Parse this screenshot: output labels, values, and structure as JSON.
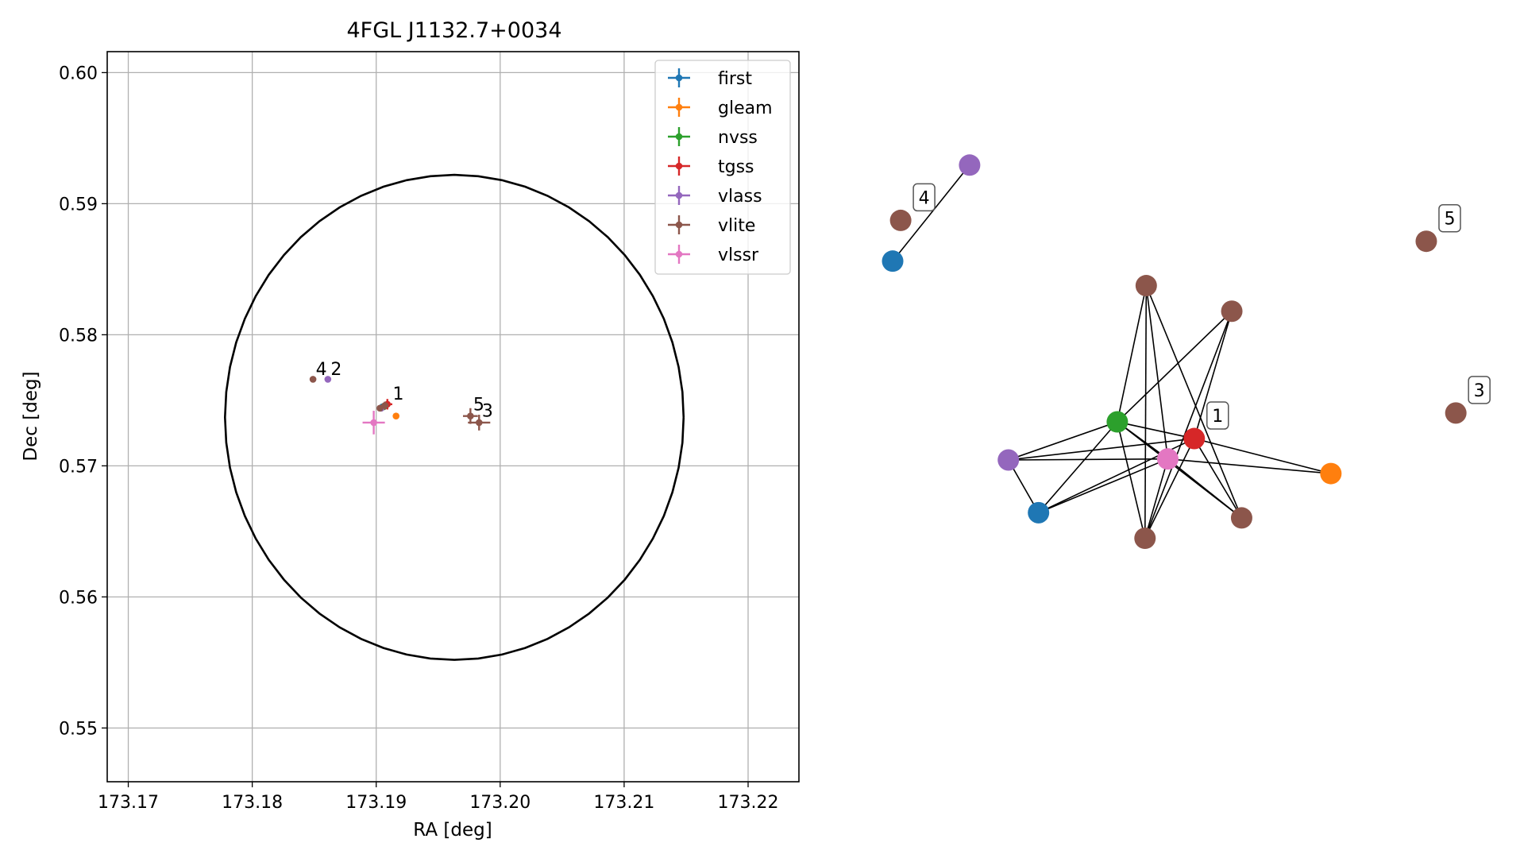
{
  "chart_data": [
    {
      "type": "scatter",
      "title": "4FGL J1132.7+0034",
      "xlabel": "RA [deg]",
      "ylabel": "Dec [deg]",
      "xlim": [
        173.1683,
        173.2241
      ],
      "ylim": [
        0.5459,
        0.6016
      ],
      "xticks": [
        "173.17",
        "173.18",
        "173.19",
        "173.20",
        "173.21",
        "173.22"
      ],
      "xtick_values": [
        173.17,
        173.18,
        173.19,
        173.2,
        173.21,
        173.22
      ],
      "yticks": [
        "0.55",
        "0.56",
        "0.57",
        "0.58",
        "0.59",
        "0.60"
      ],
      "ytick_values": [
        0.55,
        0.56,
        0.57,
        0.58,
        0.59,
        0.6
      ],
      "grid": true,
      "legend_placement": "top-right",
      "circle": {
        "center": [
          173.1963,
          0.5737
        ],
        "radius_deg": 0.0185,
        "color": "#000000"
      },
      "series": [
        {
          "name": "first",
          "color": "#1f77b4",
          "points": [
            {
              "x": 173.1905,
              "y": 0.5745,
              "xerr": 0.0002,
              "yerr": 0.0002
            }
          ]
        },
        {
          "name": "gleam",
          "color": "#ff7f0e",
          "points": [
            {
              "x": 173.1916,
              "y": 0.5738,
              "xerr": 0.0001,
              "yerr": 0.0001
            }
          ]
        },
        {
          "name": "nvss",
          "color": "#2ca02c",
          "points": [
            {
              "x": 173.1906,
              "y": 0.5745,
              "xerr": 0.0002,
              "yerr": 0.0002
            }
          ]
        },
        {
          "name": "tgss",
          "color": "#d62728",
          "points": [
            {
              "x": 173.1909,
              "y": 0.5747,
              "xerr": 0.0004,
              "yerr": 0.0004
            }
          ]
        },
        {
          "name": "vlass",
          "color": "#9467bd",
          "points": [
            {
              "x": 173.1861,
              "y": 0.5766,
              "xerr": 0.0001,
              "yerr": 0.0001
            },
            {
              "x": 173.1904,
              "y": 0.5744,
              "xerr": 0.0001,
              "yerr": 0.0001
            }
          ]
        },
        {
          "name": "vlite",
          "color": "#8c564b",
          "points": [
            {
              "x": 173.1907,
              "y": 0.5746,
              "xerr": 0.0003,
              "yerr": 0.0003
            },
            {
              "x": 173.1849,
              "y": 0.5766,
              "xerr": 0.0001,
              "yerr": 0.0001
            },
            {
              "x": 173.1976,
              "y": 0.5738,
              "xerr": 0.0006,
              "yerr": 0.0006
            },
            {
              "x": 173.1983,
              "y": 0.5733,
              "xerr": 0.0009,
              "yerr": 0.0006
            },
            {
              "x": 173.1903,
              "y": 0.5744,
              "xerr": 0.0002,
              "yerr": 0.0002
            }
          ]
        },
        {
          "name": "vlssr",
          "color": "#e377c2",
          "points": [
            {
              "x": 173.1898,
              "y": 0.5733,
              "xerr": 0.0009,
              "yerr": 0.0009
            }
          ]
        }
      ],
      "annotations": [
        {
          "text": "1",
          "x": 173.1912,
          "y": 0.5748
        },
        {
          "text": "2",
          "x": 173.1862,
          "y": 0.5767
        },
        {
          "text": "3",
          "x": 173.1984,
          "y": 0.5735
        },
        {
          "text": "4",
          "x": 173.185,
          "y": 0.5767
        },
        {
          "text": "5",
          "x": 173.1977,
          "y": 0.574
        }
      ]
    },
    {
      "type": "network",
      "nodes": [
        {
          "id": "first_a",
          "color": "#1f77b4",
          "x": 0.031,
          "y": 0.725
        },
        {
          "id": "vlass_a",
          "color": "#9467bd",
          "x": 0.156,
          "y": 0.909
        },
        {
          "id": "vlite_4",
          "color": "#8c564b",
          "x": 0.044,
          "y": 0.803,
          "label": "4"
        },
        {
          "id": "vlite_5",
          "color": "#8c564b",
          "x": 0.898,
          "y": 0.763,
          "label": "5"
        },
        {
          "id": "vlite_3",
          "color": "#8c564b",
          "x": 0.946,
          "y": 0.434,
          "label": "3"
        },
        {
          "id": "vlite_b",
          "color": "#8c564b",
          "x": 0.443,
          "y": 0.678
        },
        {
          "id": "vlite_c",
          "color": "#8c564b",
          "x": 0.582,
          "y": 0.629
        },
        {
          "id": "nvss",
          "color": "#2ca02c",
          "x": 0.396,
          "y": 0.417
        },
        {
          "id": "tgss",
          "color": "#d62728",
          "x": 0.521,
          "y": 0.385,
          "label": "1"
        },
        {
          "id": "vlass_b",
          "color": "#9467bd",
          "x": 0.219,
          "y": 0.344
        },
        {
          "id": "vlssr",
          "color": "#e377c2",
          "x": 0.478,
          "y": 0.346
        },
        {
          "id": "gleam",
          "color": "#ff7f0e",
          "x": 0.743,
          "y": 0.318
        },
        {
          "id": "first_b",
          "color": "#1f77b4",
          "x": 0.268,
          "y": 0.243
        },
        {
          "id": "vlite_d",
          "color": "#8c564b",
          "x": 0.598,
          "y": 0.233
        },
        {
          "id": "vlite_e",
          "color": "#8c564b",
          "x": 0.441,
          "y": 0.194
        }
      ],
      "edges": [
        [
          "first_a",
          "vlass_a"
        ],
        [
          "vlite_b",
          "vlite_e"
        ],
        [
          "vlite_b",
          "vlssr"
        ],
        [
          "vlite_b",
          "vlite_d"
        ],
        [
          "vlite_b",
          "nvss"
        ],
        [
          "vlite_c",
          "nvss"
        ],
        [
          "vlite_c",
          "vlite_e"
        ],
        [
          "vlite_c",
          "tgss"
        ],
        [
          "nvss",
          "vlass_b"
        ],
        [
          "nvss",
          "first_b"
        ],
        [
          "nvss",
          "tgss"
        ],
        [
          "nvss",
          "vlite_d"
        ],
        [
          "nvss",
          "vlite_e"
        ],
        [
          "nvss",
          "vlssr"
        ],
        [
          "vlass_b",
          "vlssr"
        ],
        [
          "vlass_b",
          "first_b"
        ],
        [
          "vlass_b",
          "tgss"
        ],
        [
          "vlssr",
          "first_b"
        ],
        [
          "vlssr",
          "gleam"
        ],
        [
          "vlssr",
          "vlite_d"
        ],
        [
          "vlssr",
          "vlite_e"
        ],
        [
          "tgss",
          "gleam"
        ],
        [
          "tgss",
          "vlite_d"
        ],
        [
          "tgss",
          "first_b"
        ],
        [
          "tgss",
          "vlite_e"
        ]
      ]
    }
  ]
}
